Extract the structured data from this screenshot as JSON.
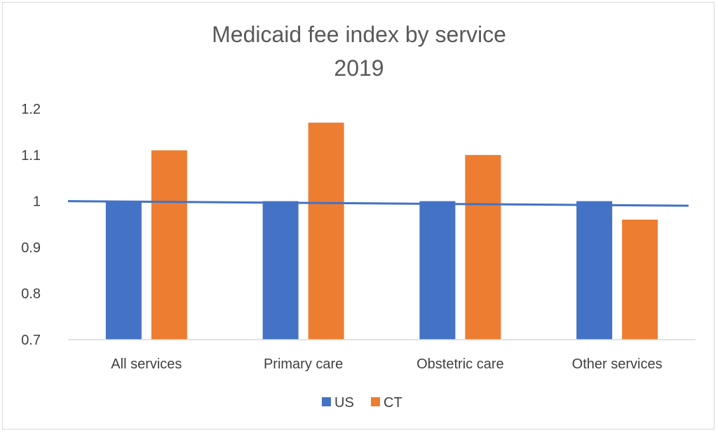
{
  "chart_data": {
    "type": "bar",
    "title": "Medicaid fee index by service",
    "subtitle": "2019",
    "xlabel": "",
    "ylabel": "",
    "categories": [
      "All services",
      "Primary care",
      "Obstetric care",
      "Other services"
    ],
    "series": [
      {
        "name": "US",
        "values": [
          1.0,
          1.0,
          1.0,
          1.0
        ],
        "color": "#4472c4"
      },
      {
        "name": "CT",
        "values": [
          1.11,
          1.17,
          1.1,
          0.96
        ],
        "color": "#ed7d31"
      }
    ],
    "reference_line": {
      "values": [
        1.0,
        0.99
      ],
      "color": "#4472c4"
    },
    "ylim": [
      0.7,
      1.2
    ],
    "yticks": [
      "0.7",
      "0.8",
      "0.9",
      "1",
      "1.1",
      "1.2"
    ],
    "ytick_values": [
      0.7,
      0.8,
      0.9,
      1.0,
      1.1,
      1.2
    ],
    "grid": false,
    "legend_position": "bottom"
  }
}
